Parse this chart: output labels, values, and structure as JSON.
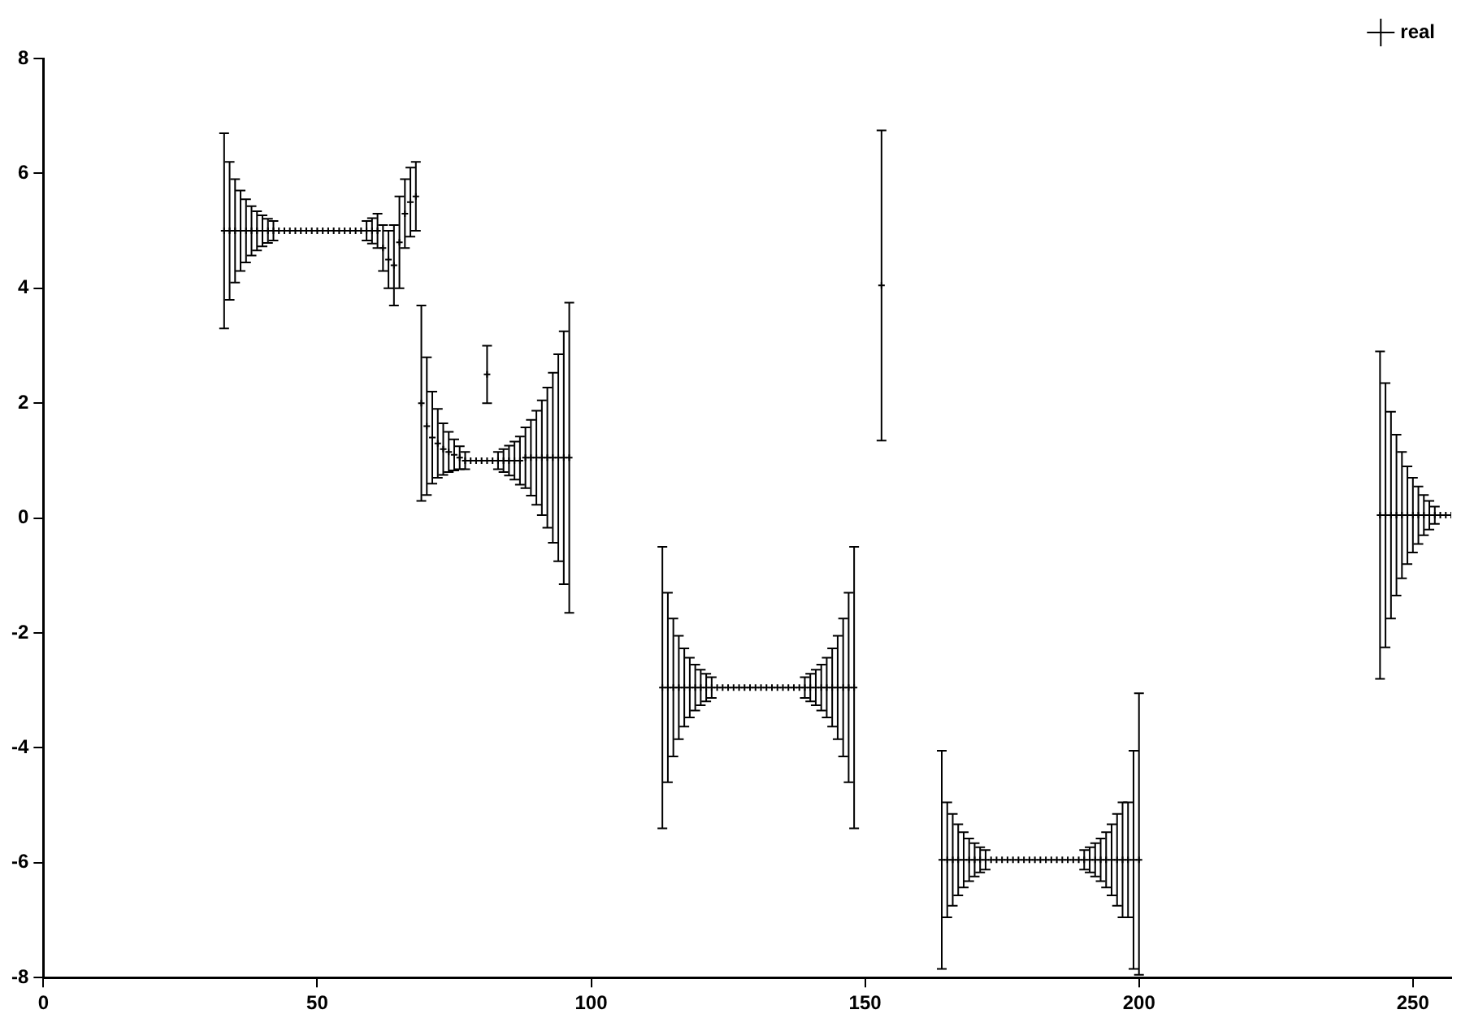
{
  "chart_data": {
    "type": "scatter",
    "x": [
      33,
      34,
      35,
      36,
      37,
      38,
      39,
      40,
      41,
      42,
      43,
      44,
      45,
      46,
      47,
      48,
      49,
      50,
      51,
      52,
      53,
      54,
      55,
      56,
      57,
      58,
      59,
      60,
      61,
      62,
      63,
      64,
      65,
      66,
      67,
      68,
      69,
      70,
      71,
      72,
      73,
      74,
      75,
      76,
      77,
      78,
      79,
      80,
      81,
      81,
      82,
      83,
      84,
      85,
      86,
      87,
      88,
      89,
      90,
      91,
      92,
      93,
      94,
      95,
      96,
      113,
      114,
      115,
      116,
      117,
      118,
      119,
      120,
      121,
      122,
      123,
      124,
      125,
      126,
      127,
      128,
      129,
      130,
      131,
      132,
      133,
      134,
      135,
      136,
      137,
      138,
      139,
      140,
      141,
      142,
      143,
      144,
      145,
      146,
      147,
      148,
      153,
      164,
      165,
      166,
      167,
      168,
      169,
      170,
      171,
      172,
      173,
      174,
      175,
      176,
      177,
      178,
      179,
      180,
      181,
      182,
      183,
      184,
      185,
      186,
      187,
      188,
      189,
      190,
      191,
      192,
      193,
      194,
      195,
      196,
      197,
      198,
      199,
      200,
      244,
      245,
      246,
      247,
      248,
      249,
      250,
      251,
      252,
      253,
      254,
      255,
      256,
      257
    ],
    "series": [
      {
        "name": "real",
        "color": "#000000",
        "values": [
          5,
          5,
          5,
          5,
          5,
          5,
          5,
          5,
          5,
          5,
          5,
          5,
          5,
          5,
          5,
          5,
          5,
          5,
          5,
          5,
          5,
          5,
          5,
          5,
          5,
          5,
          5,
          5,
          5,
          4.7,
          4.5,
          4.4,
          4.8,
          5.3,
          5.5,
          5.6,
          2.0,
          1.6,
          1.4,
          1.3,
          1.2,
          1.15,
          1.1,
          1.05,
          1.0,
          1.0,
          1.0,
          1.0,
          1.0,
          2.5,
          1.0,
          1.0,
          1.0,
          1.0,
          1.0,
          1.0,
          1.05,
          1.05,
          1.05,
          1.05,
          1.05,
          1.05,
          1.05,
          1.05,
          1.05,
          -2.95,
          -2.95,
          -2.95,
          -2.95,
          -2.95,
          -2.95,
          -2.95,
          -2.95,
          -2.95,
          -2.95,
          -2.95,
          -2.95,
          -2.95,
          -2.95,
          -2.95,
          -2.95,
          -2.95,
          -2.95,
          -2.95,
          -2.95,
          -2.95,
          -2.95,
          -2.95,
          -2.95,
          -2.95,
          -2.95,
          -2.95,
          -2.95,
          -2.95,
          -2.95,
          -2.95,
          -2.95,
          -2.95,
          -2.95,
          -2.95,
          -2.95,
          4.05,
          -5.95,
          -5.95,
          -5.95,
          -5.95,
          -5.95,
          -5.95,
          -5.95,
          -5.95,
          -5.95,
          -5.95,
          -5.95,
          -5.95,
          -5.95,
          -5.95,
          -5.95,
          -5.95,
          -5.95,
          -5.95,
          -5.95,
          -5.95,
          -5.95,
          -5.95,
          -5.95,
          -5.95,
          -5.95,
          -5.95,
          -5.95,
          -5.95,
          -5.95,
          -5.95,
          -5.95,
          -5.95,
          -5.95,
          -5.95,
          -5.95,
          -5.95,
          -5.95,
          0.05,
          0.05,
          0.05,
          0.05,
          0.05,
          0.05,
          0.05,
          0.05,
          0.05,
          0.05,
          0.05,
          0.05,
          0.05,
          0.05
        ],
        "errors": [
          1.7,
          1.2,
          0.9,
          0.7,
          0.55,
          0.43,
          0.34,
          0.27,
          0.21,
          0.17,
          null,
          null,
          null,
          null,
          null,
          null,
          null,
          null,
          null,
          null,
          null,
          null,
          null,
          null,
          null,
          null,
          0.17,
          0.22,
          0.3,
          0.4,
          0.5,
          0.7,
          0.8,
          0.6,
          0.6,
          0.6,
          1.7,
          1.2,
          0.8,
          0.6,
          0.45,
          0.35,
          0.27,
          0.2,
          0.15,
          null,
          null,
          null,
          null,
          0.5,
          null,
          0.15,
          0.2,
          0.26,
          0.33,
          0.42,
          0.53,
          0.66,
          0.82,
          1.0,
          1.22,
          1.48,
          1.8,
          2.2,
          2.7,
          2.45,
          1.65,
          1.2,
          0.9,
          0.68,
          0.52,
          0.4,
          0.31,
          0.24,
          0.18,
          null,
          null,
          null,
          null,
          null,
          null,
          null,
          null,
          null,
          null,
          null,
          null,
          null,
          null,
          null,
          null,
          0.18,
          0.24,
          0.31,
          0.4,
          0.52,
          0.68,
          0.9,
          1.2,
          1.65,
          2.45,
          2.7,
          1.9,
          1.0,
          0.8,
          0.62,
          0.48,
          0.37,
          0.29,
          0.22,
          0.17,
          null,
          null,
          null,
          null,
          null,
          null,
          null,
          null,
          null,
          null,
          null,
          null,
          null,
          null,
          null,
          null,
          null,
          0.17,
          0.22,
          0.29,
          0.37,
          0.48,
          0.62,
          0.8,
          1.0,
          1.0,
          1.9,
          [
            -7.95,
            -3.05
          ],
          2.85,
          2.3,
          1.8,
          1.4,
          1.1,
          0.85,
          0.65,
          0.5,
          0.35,
          0.25,
          0.15,
          null,
          null,
          null
        ]
      }
    ],
    "xlim": [
      0,
      257
    ],
    "xticks": [
      0,
      50,
      100,
      150,
      200,
      250
    ],
    "ylim": [
      -8,
      8
    ],
    "yticks": [
      -8,
      -6,
      -4,
      -2,
      0,
      2,
      4,
      6,
      8
    ],
    "grid": false,
    "legend": "top right",
    "marker": "cross"
  }
}
